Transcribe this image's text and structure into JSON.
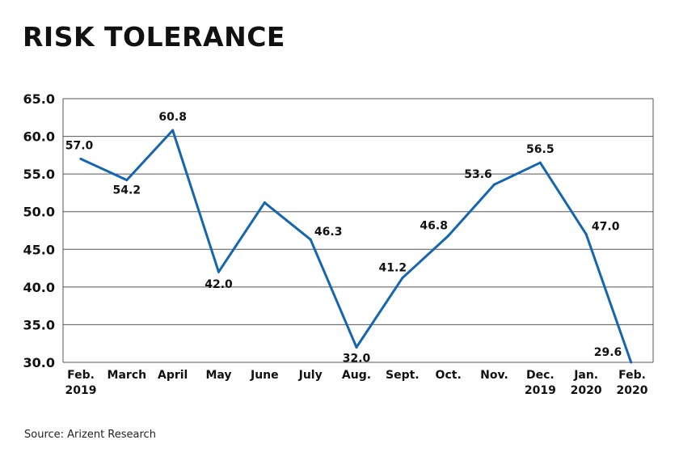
{
  "title": "RISK TOLERANCE",
  "source": "Source: Arizent Research",
  "chart_data": {
    "type": "line",
    "title": "RISK TOLERANCE",
    "xlabel": "",
    "ylabel": "",
    "ylim": [
      30.0,
      65.0
    ],
    "yticks": [
      "30.0",
      "35.0",
      "40.0",
      "45.0",
      "50.0",
      "55.0",
      "60.0",
      "65.0"
    ],
    "grid": true,
    "categories": [
      [
        "Feb.",
        "2019"
      ],
      [
        "March"
      ],
      [
        "April"
      ],
      [
        "May"
      ],
      [
        "June"
      ],
      [
        "July"
      ],
      [
        "Aug."
      ],
      [
        "Sept."
      ],
      [
        "Oct."
      ],
      [
        "Nov."
      ],
      [
        "Dec.",
        "2019"
      ],
      [
        "Jan.",
        "2020"
      ],
      [
        "Feb.",
        "2020"
      ]
    ],
    "series": [
      {
        "color": "#1565b0",
        "values": [
          57.0,
          54.2,
          60.8,
          42.0,
          51.2,
          46.3,
          32.0,
          41.2,
          46.8,
          53.6,
          56.5,
          47.0,
          29.6
        ],
        "labels": [
          "57.0",
          "54.2",
          "60.8",
          "42.0",
          "",
          "46.3",
          "32.0",
          "41.2",
          "46.8",
          "53.6",
          "56.5",
          "47.0",
          "29.6"
        ]
      }
    ]
  }
}
